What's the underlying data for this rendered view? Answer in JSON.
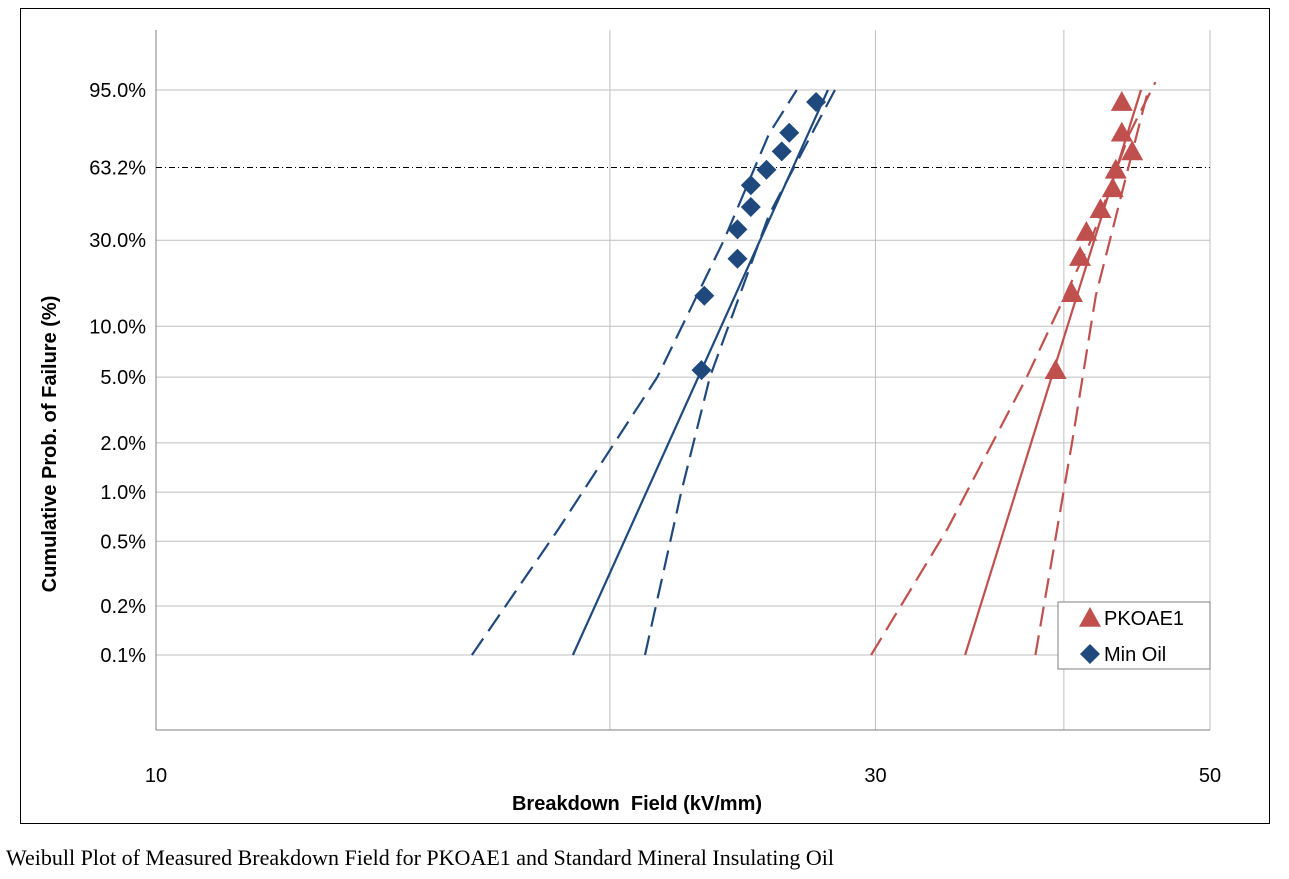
{
  "caption": "Weibull Plot of Measured Breakdown Field for PKOAE1 and Standard Mineral Insulating Oil",
  "chart_data": {
    "type": "scatter",
    "title": "",
    "xlabel": "Breakdown  Field (kV/mm)",
    "ylabel": "Cumulative Prob. of Failure (%)",
    "x_scale": "log",
    "y_scale": "weibull",
    "xlim": [
      10,
      50
    ],
    "ylim_percent": [
      0.05,
      99.5
    ],
    "x_ticks": [
      {
        "value": 10,
        "label": "10"
      },
      {
        "value": 30,
        "label": "30"
      },
      {
        "value": 50,
        "label": "50"
      }
    ],
    "x_gridlines": [
      10,
      20,
      30,
      40,
      50
    ],
    "y_ticks": [
      {
        "value": 95.0,
        "label": "95.0%"
      },
      {
        "value": 63.2,
        "label": "63.2%"
      },
      {
        "value": 30.0,
        "label": "30.0%"
      },
      {
        "value": 10.0,
        "label": "10.0%"
      },
      {
        "value": 5.0,
        "label": "5.0%"
      },
      {
        "value": 2.0,
        "label": "2.0%"
      },
      {
        "value": 1.0,
        "label": "1.0%"
      },
      {
        "value": 0.5,
        "label": "0.5%"
      },
      {
        "value": 0.2,
        "label": "0.2%"
      },
      {
        "value": 0.1,
        "label": "0.1%"
      }
    ],
    "grid": true,
    "reference_line": {
      "y": 63.2,
      "style": "dash-dot"
    },
    "legend": {
      "position": "bottom-right"
    },
    "series": [
      {
        "name": "PKOAE1",
        "color": "#C0504D",
        "marker": "triangle",
        "points": [
          {
            "x": 39.5,
            "y": 5.5
          },
          {
            "x": 40.5,
            "y": 15.5
          },
          {
            "x": 41.0,
            "y": 24.5
          },
          {
            "x": 41.4,
            "y": 33.0
          },
          {
            "x": 42.3,
            "y": 42.5
          },
          {
            "x": 43.1,
            "y": 52.5
          },
          {
            "x": 43.3,
            "y": 62.0
          },
          {
            "x": 43.7,
            "y": 80.5
          },
          {
            "x": 43.7,
            "y": 92.0
          },
          {
            "x": 44.4,
            "y": 71.5
          }
        ],
        "fit": [
          {
            "x": 34.4,
            "y": 0.1
          },
          {
            "x": 45.0,
            "y": 95.0
          }
        ],
        "bound_lower": [
          {
            "x": 29.8,
            "y": 0.1
          },
          {
            "x": 33.5,
            "y": 0.6
          },
          {
            "x": 37.8,
            "y": 5.0
          },
          {
            "x": 41.7,
            "y": 30.0
          },
          {
            "x": 44.2,
            "y": 80.0
          },
          {
            "x": 46.0,
            "y": 96.5
          }
        ],
        "bound_upper": [
          {
            "x": 38.3,
            "y": 0.1
          },
          {
            "x": 40.5,
            "y": 2.0
          },
          {
            "x": 42.0,
            "y": 15.0
          },
          {
            "x": 43.7,
            "y": 50.0
          },
          {
            "x": 45.5,
            "y": 95.0
          }
        ]
      },
      {
        "name": "Min Oil",
        "color": "#1F497D",
        "marker": "diamond",
        "points": [
          {
            "x": 23.0,
            "y": 5.5
          },
          {
            "x": 23.1,
            "y": 15.0
          },
          {
            "x": 24.3,
            "y": 24.0
          },
          {
            "x": 24.3,
            "y": 34.0
          },
          {
            "x": 24.8,
            "y": 43.5
          },
          {
            "x": 24.8,
            "y": 54.0
          },
          {
            "x": 25.4,
            "y": 62.0
          },
          {
            "x": 26.0,
            "y": 71.5
          },
          {
            "x": 26.3,
            "y": 80.5
          },
          {
            "x": 27.4,
            "y": 92.0
          }
        ],
        "fit": [
          {
            "x": 18.9,
            "y": 0.1
          },
          {
            "x": 27.9,
            "y": 95.0
          }
        ],
        "bound_lower": [
          {
            "x": 16.2,
            "y": 0.1
          },
          {
            "x": 18.5,
            "y": 0.6
          },
          {
            "x": 21.5,
            "y": 5.0
          },
          {
            "x": 23.8,
            "y": 30.0
          },
          {
            "x": 25.5,
            "y": 80.0
          },
          {
            "x": 26.6,
            "y": 95.0
          }
        ],
        "bound_upper": [
          {
            "x": 21.1,
            "y": 0.1
          },
          {
            "x": 22.3,
            "y": 1.0
          },
          {
            "x": 23.3,
            "y": 5.0
          },
          {
            "x": 25.5,
            "y": 40.0
          },
          {
            "x": 28.2,
            "y": 95.0
          }
        ]
      }
    ]
  }
}
